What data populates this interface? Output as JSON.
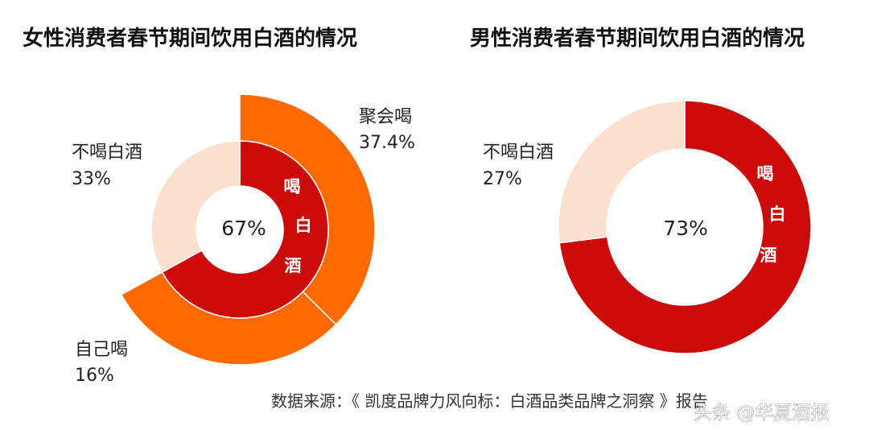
{
  "colors": {
    "drink_total": "#cc0a0a",
    "party": "#ff6a00",
    "self": "#ff6a00",
    "no_drink": "#fbe0d0",
    "separator": "#ffffff"
  },
  "chart_data": [
    {
      "type": "pie",
      "variant": "nested-donut",
      "title": "女性消费者春节期间饮用白酒的情况",
      "inner_ring": {
        "slices": [
          {
            "label": "喝白酒",
            "value": 67
          },
          {
            "label": "不喝白酒",
            "value": 33
          }
        ],
        "vertical_label": [
          "喝",
          "白",
          "酒"
        ],
        "center_label": "67%"
      },
      "outer_ring": {
        "slices": [
          {
            "label": "聚会喝",
            "value": 37.4,
            "value_label": "37.4%"
          },
          {
            "label": "自己喝",
            "value": 16,
            "value_label": "16%"
          }
        ]
      },
      "outside_labels": [
        {
          "label": "不喝白酒",
          "value_label": "33%"
        }
      ]
    },
    {
      "type": "pie",
      "variant": "donut",
      "title": "男性消费者春节期间饮用白酒的情况",
      "slices": [
        {
          "label": "喝白酒",
          "value": 73
        },
        {
          "label": "不喝白酒",
          "value": 27,
          "value_label": "27%"
        }
      ],
      "vertical_label": [
        "喝",
        "白",
        "酒"
      ],
      "center_label": "73%"
    }
  ],
  "source_text": "数据来源：《 凯度品牌力风向标：白酒品类品牌之洞察 》报告",
  "watermark": "头条 @华夏酒报"
}
